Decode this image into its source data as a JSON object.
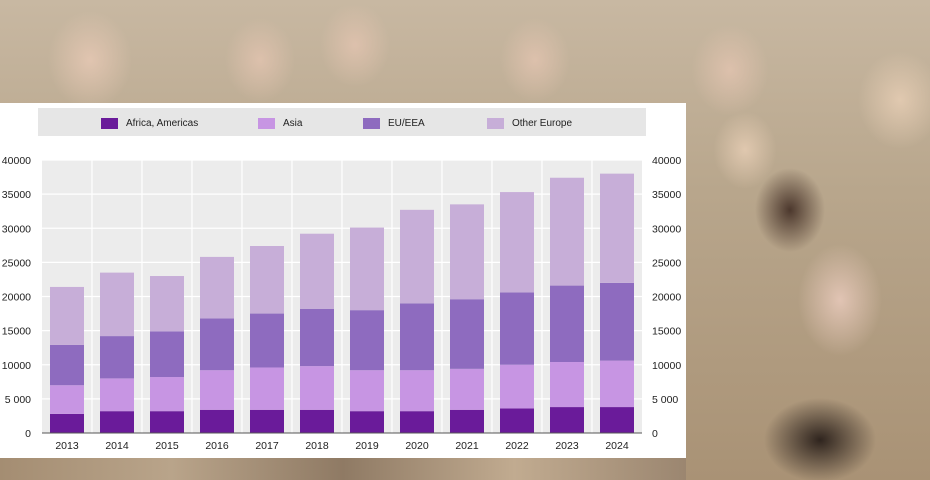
{
  "colors": {
    "africa_americas": "#6a1b9a",
    "asia": "#c795e3",
    "eu_eea": "#8e6bbf",
    "other_europe": "#c7aed8"
  },
  "legend": [
    {
      "label": "Africa, Americas",
      "color": "#6a1b9a"
    },
    {
      "label": "Asia",
      "color": "#c795e3"
    },
    {
      "label": "EU/EEA",
      "color": "#8e6bbf"
    },
    {
      "label": "Other Europe",
      "color": "#c7aed8"
    }
  ],
  "chart_data": {
    "type": "bar",
    "stacked": true,
    "categories": [
      "2013",
      "2014",
      "2015",
      "2016",
      "2017",
      "2018",
      "2019",
      "2020",
      "2021",
      "2022",
      "2023",
      "2024"
    ],
    "series": [
      {
        "name": "Africa, Americas",
        "values": [
          2800,
          3200,
          3200,
          3400,
          3400,
          3400,
          3200,
          3200,
          3400,
          3600,
          3800,
          3800
        ]
      },
      {
        "name": "Asia",
        "values": [
          4200,
          4800,
          5000,
          5800,
          6200,
          6400,
          6000,
          6000,
          6000,
          6400,
          6600,
          6800
        ]
      },
      {
        "name": "EU/EEA",
        "values": [
          5900,
          6200,
          6700,
          7600,
          7900,
          8400,
          8800,
          9800,
          10200,
          10600,
          11200,
          11400
        ]
      },
      {
        "name": "Other Europe",
        "values": [
          8500,
          9300,
          8100,
          9000,
          9900,
          11000,
          12100,
          13700,
          13900,
          14700,
          15800,
          16000
        ]
      }
    ],
    "ylim": [
      0,
      40000
    ],
    "yticks": [
      0,
      5000,
      10000,
      15000,
      20000,
      25000,
      30000,
      35000,
      40000
    ],
    "ytick_labels": [
      "0",
      "5 000",
      "10000",
      "15000",
      "20000",
      "25000",
      "30000",
      "35000",
      "40000"
    ],
    "grid": true,
    "legend_position": "top",
    "secondary_axis_right": true
  }
}
